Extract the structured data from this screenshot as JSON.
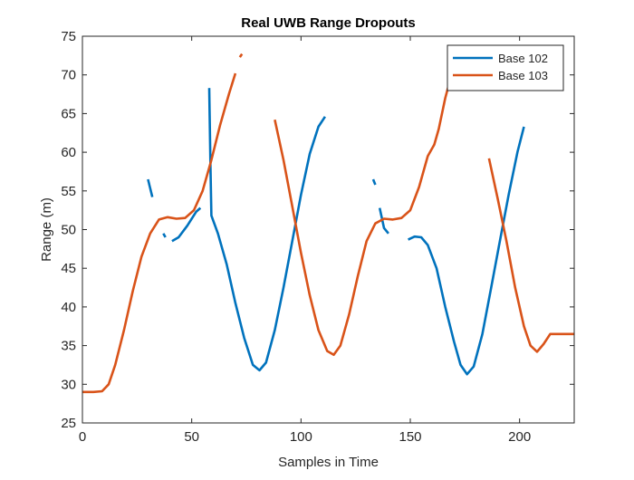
{
  "chart_data": {
    "type": "line",
    "title": "Real UWB Range Dropouts",
    "xlabel": "Samples in Time",
    "ylabel": "Range (m)",
    "xlim": [
      0,
      225
    ],
    "ylim": [
      25,
      75
    ],
    "xticks": [
      0,
      50,
      100,
      150,
      200
    ],
    "yticks": [
      25,
      30,
      35,
      40,
      45,
      50,
      55,
      60,
      65,
      70,
      75
    ],
    "grid": false,
    "legend_position": "top-right",
    "series": [
      {
        "name": "Base 102",
        "color": "#0072BD",
        "segments": [
          [
            [
              30,
              56.5
            ],
            [
              32,
              54.2
            ]
          ],
          [
            [
              37,
              49.5
            ],
            [
              38,
              49.0
            ]
          ],
          [
            [
              41,
              48.5
            ],
            [
              44,
              49.0
            ],
            [
              48,
              50.5
            ],
            [
              52,
              52.3
            ],
            [
              54,
              52.8
            ]
          ],
          [
            [
              58,
              68.3
            ],
            [
              58.6,
              58.0
            ],
            [
              59,
              51.8
            ],
            [
              62,
              49.5
            ],
            [
              66,
              45.5
            ],
            [
              70,
              40.5
            ],
            [
              74,
              36.0
            ],
            [
              78,
              32.5
            ],
            [
              81,
              31.8
            ],
            [
              84,
              32.8
            ],
            [
              88,
              37.0
            ],
            [
              92,
              42.5
            ],
            [
              96,
              48.5
            ],
            [
              100,
              54.5
            ],
            [
              104,
              59.8
            ],
            [
              108,
              63.3
            ],
            [
              111,
              64.6
            ]
          ],
          [
            [
              133,
              56.5
            ],
            [
              134,
              55.8
            ]
          ],
          [
            [
              136,
              52.8
            ],
            [
              138,
              50.2
            ],
            [
              140,
              49.5
            ]
          ],
          [
            [
              149,
              48.7
            ],
            [
              152,
              49.1
            ],
            [
              155,
              49.0
            ],
            [
              158,
              48.0
            ],
            [
              162,
              45.0
            ],
            [
              166,
              40.0
            ],
            [
              170,
              35.5
            ],
            [
              173,
              32.5
            ],
            [
              176,
              31.3
            ],
            [
              179,
              32.3
            ],
            [
              183,
              36.5
            ],
            [
              187,
              42.5
            ],
            [
              191,
              48.5
            ],
            [
              195,
              54.5
            ],
            [
              199,
              60.0
            ],
            [
              202,
              63.3
            ]
          ]
        ]
      },
      {
        "name": "Base 103",
        "color": "#D95319",
        "segments": [
          [
            [
              0,
              29.0
            ],
            [
              5,
              29.0
            ],
            [
              9,
              29.1
            ],
            [
              12,
              30.0
            ],
            [
              15,
              32.5
            ],
            [
              19,
              37.0
            ],
            [
              23,
              42.0
            ],
            [
              27,
              46.5
            ],
            [
              31,
              49.5
            ],
            [
              35,
              51.3
            ],
            [
              39,
              51.6
            ],
            [
              43,
              51.4
            ],
            [
              47,
              51.5
            ],
            [
              51,
              52.5
            ],
            [
              55,
              55.0
            ],
            [
              59,
              59.0
            ],
            [
              63,
              63.5
            ],
            [
              67,
              67.5
            ],
            [
              70,
              70.2
            ]
          ],
          [
            [
              72,
              72.3
            ],
            [
              73,
              72.7
            ]
          ],
          [
            [
              88,
              64.2
            ],
            [
              92,
              59.0
            ],
            [
              96,
              53.0
            ],
            [
              100,
              47.0
            ],
            [
              104,
              41.5
            ],
            [
              108,
              37.0
            ],
            [
              112,
              34.3
            ],
            [
              115,
              33.8
            ],
            [
              118,
              35.0
            ],
            [
              122,
              39.0
            ],
            [
              126,
              44.0
            ],
            [
              130,
              48.5
            ],
            [
              134,
              50.8
            ],
            [
              138,
              51.4
            ],
            [
              142,
              51.3
            ],
            [
              146,
              51.5
            ],
            [
              150,
              52.5
            ],
            [
              154,
              55.5
            ],
            [
              158,
              59.5
            ],
            [
              161,
              61.0
            ],
            [
              163,
              63.0
            ],
            [
              166,
              67.0
            ],
            [
              169,
              70.2
            ]
          ],
          [
            [
              186,
              59.2
            ],
            [
              190,
              54.0
            ],
            [
              194,
              48.5
            ],
            [
              198,
              42.5
            ],
            [
              202,
              37.5
            ],
            [
              205,
              35.0
            ],
            [
              208,
              34.2
            ],
            [
              211,
              35.2
            ],
            [
              214,
              36.5
            ],
            [
              217,
              36.5
            ],
            [
              220,
              36.5
            ],
            [
              225,
              36.5
            ]
          ]
        ]
      }
    ]
  }
}
